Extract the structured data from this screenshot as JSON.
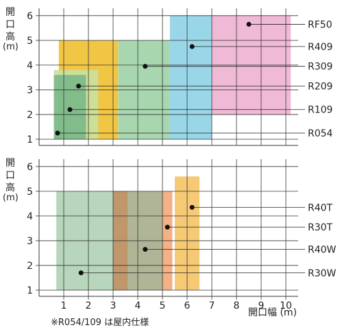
{
  "chart_data": [
    {
      "type": "range-box",
      "ylabel": "開口高(m)",
      "xlim": [
        0,
        10.5
      ],
      "ylim": [
        0.75,
        6.3
      ],
      "y_ticks": [
        1,
        2,
        3,
        4,
        5,
        6
      ],
      "x_ticks": [
        1,
        2,
        3,
        4,
        5,
        6,
        7,
        8,
        9,
        10
      ],
      "grid": true,
      "series": [
        {
          "name": "RF50",
          "x_range": [
            7.0,
            10.2
          ],
          "y_range": [
            2.0,
            6.0
          ],
          "marker": [
            8.5,
            5.65
          ],
          "label_y": 5.65,
          "color": "#eeb3d2"
        },
        {
          "name": "R409",
          "x_range": [
            5.3,
            7.0
          ],
          "y_range": [
            1.0,
            6.0
          ],
          "marker": [
            6.2,
            4.75
          ],
          "label_y": 4.75,
          "color": "#8ed2e6"
        },
        {
          "name": "R309",
          "x_range": [
            3.2,
            5.3
          ],
          "y_range": [
            1.0,
            5.0
          ],
          "marker": [
            4.3,
            3.95
          ],
          "label_y": 3.95,
          "color": "#9fd3a6"
        },
        {
          "name": "R209",
          "x_range": [
            0.8,
            3.2
          ],
          "y_range": [
            1.0,
            5.0
          ],
          "marker": [
            1.6,
            3.15
          ],
          "label_y": 3.15,
          "color": "#efc030"
        },
        {
          "name": "R109",
          "x_range": [
            0.6,
            2.4
          ],
          "y_range": [
            1.0,
            3.8
          ],
          "marker": [
            1.25,
            2.2
          ],
          "label_y": 2.2,
          "color": "#c9e0a0"
        },
        {
          "name": "R054",
          "x_range": [
            0.6,
            1.9
          ],
          "y_range": [
            1.0,
            3.6
          ],
          "marker": [
            0.75,
            1.25
          ],
          "label_y": 1.25,
          "color": "#7ab888"
        }
      ]
    },
    {
      "type": "range-box",
      "ylabel": "開口高(m)",
      "xlabel": "開口幅 (m)",
      "xlim": [
        0,
        10.5
      ],
      "ylim": [
        0.75,
        6.3
      ],
      "y_ticks": [
        1,
        2,
        3,
        4,
        5,
        6
      ],
      "x_ticks": [
        1,
        2,
        3,
        4,
        5,
        6,
        7,
        8,
        9,
        10
      ],
      "grid": true,
      "series": [
        {
          "name": "R40T",
          "x_range": [
            5.5,
            6.5
          ],
          "y_range": [
            1.0,
            5.6
          ],
          "marker": [
            6.2,
            4.35
          ],
          "label_y": 4.35,
          "color": "#f5c466"
        },
        {
          "name": "R30T",
          "x_range": [
            5.0,
            5.4
          ],
          "y_range": [
            1.0,
            5.0
          ],
          "marker": [
            5.2,
            3.55
          ],
          "label_y": 3.55,
          "color": "#f3a878"
        },
        {
          "name": "R40W",
          "x_range": [
            3.6,
            5.0
          ],
          "y_range": [
            1.0,
            5.0
          ],
          "marker": [
            4.3,
            2.65
          ],
          "label_y": 2.65,
          "color": "#a9ad8c"
        },
        {
          "name": "R30W",
          "x_range": [
            3.0,
            3.6
          ],
          "y_range": [
            1.0,
            5.0
          ],
          "marker": [
            1.7,
            1.7
          ],
          "label_y": 1.7,
          "color": "#b98c5a"
        }
      ],
      "extra_box": {
        "x_range": [
          0.7,
          3.0
        ],
        "y_range": [
          1.0,
          5.0
        ],
        "color": "#b4d4b8"
      }
    }
  ],
  "labels": {
    "top_y_axis": "開口高(m)",
    "bottom_y_axis": "開口高(m)",
    "x_axis": "開口幅 (m)",
    "footnote": "※R054/109 は屋内仕様"
  }
}
